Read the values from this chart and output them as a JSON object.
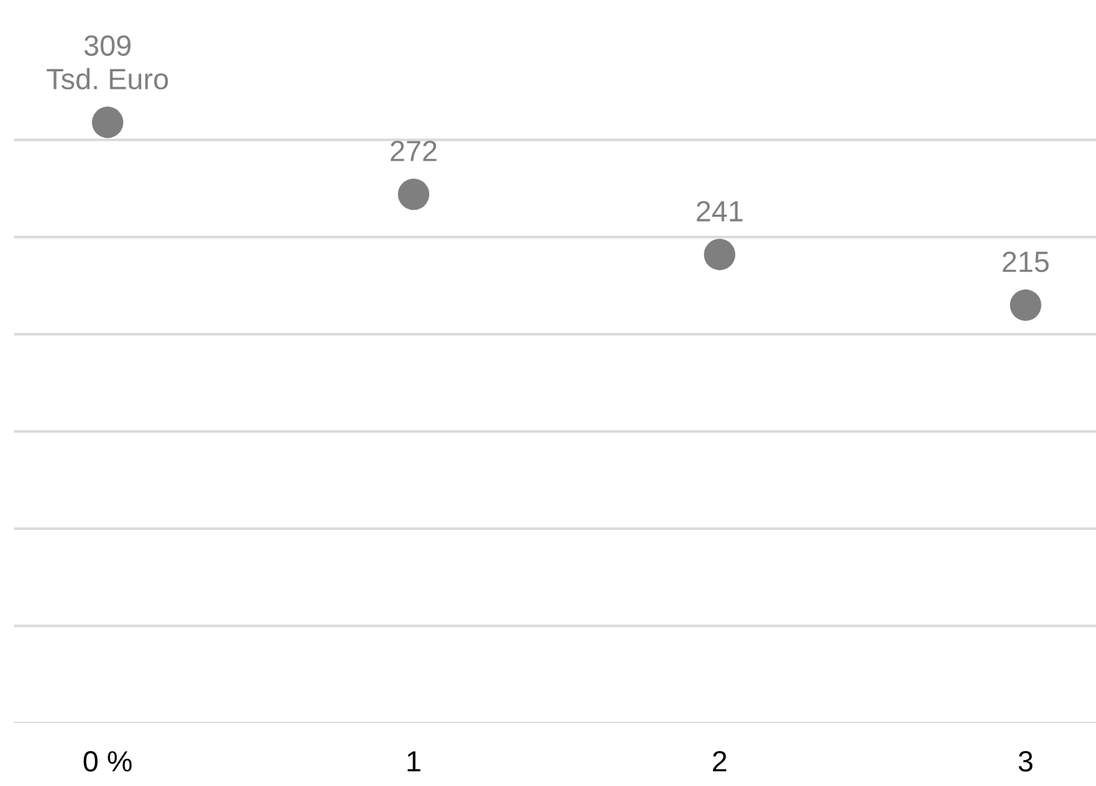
{
  "chart_data": {
    "type": "scatter",
    "categories": [
      "0 %",
      "1",
      "2",
      "3"
    ],
    "values": [
      309,
      272,
      241,
      215
    ],
    "value_labels": [
      "309\nTsd. Euro",
      "272",
      "241",
      "215"
    ],
    "color": "#7f7f7f",
    "marker": "circle",
    "ref_lines": [
      {
        "axis": "y",
        "value": 0,
        "color": "#d9d9d9"
      },
      {
        "axis": "y",
        "value": 50,
        "color": "#d9d9d9"
      },
      {
        "axis": "y",
        "value": 100,
        "color": "#d9d9d9"
      },
      {
        "axis": "y",
        "value": 150,
        "color": "#d9d9d9"
      },
      {
        "axis": "y",
        "value": 200,
        "color": "#d9d9d9"
      },
      {
        "axis": "y",
        "value": 250,
        "color": "#d9d9d9"
      },
      {
        "axis": "y",
        "value": 300,
        "color": "#d9d9d9"
      }
    ],
    "tick_labels": "x"
  }
}
